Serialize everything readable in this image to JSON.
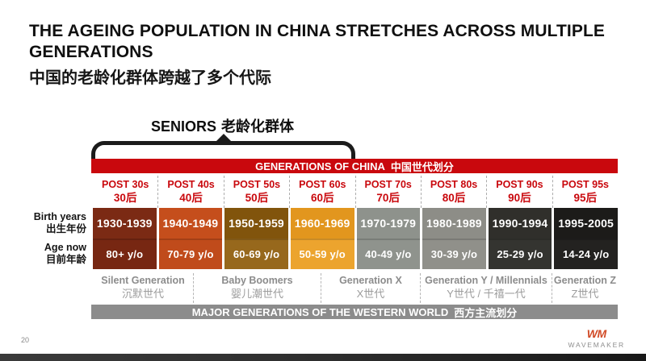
{
  "slide": {
    "title_en_line1": "THE AGEING POPULATION IN CHINA STRETCHES ACROSS MULTIPLE",
    "title_en_line2": "GENERATIONS",
    "title_cn": "中国的老龄化群体跨越了多个代际"
  },
  "seniors_callout": {
    "label_en": "SENIORS",
    "label_cn": "老龄化群体"
  },
  "china_table": {
    "banner": {
      "label_en": "GENERATIONS OF CHINA",
      "label_cn": "中国世代划分",
      "bg_color": "#C9080D",
      "text_color": "#FFFFFF"
    },
    "header_text_color": "#C9080D",
    "row_labels": {
      "birth_years_en": "Birth years",
      "birth_years_cn": "出生年份",
      "age_now_en": "Age now",
      "age_now_cn": "目前年龄"
    },
    "columns": [
      {
        "header_en": "POST 30s",
        "header_cn": "30后",
        "birth_years": "1930-1939",
        "age_now": "80+ y/o",
        "birth_bg": "#7B2A14",
        "age_bg": "#772712"
      },
      {
        "header_en": "POST 40s",
        "header_cn": "40后",
        "birth_years": "1940-1949",
        "age_now": "70-79 y/o",
        "birth_bg": "#C54E1C",
        "age_bg": "#C04B1B"
      },
      {
        "header_en": "POST 50s",
        "header_cn": "50后",
        "birth_years": "1950-1959",
        "age_now": "60-69 y/o",
        "birth_bg": "#81540C",
        "age_bg": "#97681C"
      },
      {
        "header_en": "POST 60s",
        "header_cn": "60后",
        "birth_years": "1960-1969",
        "age_now": "50-59 y/o",
        "birth_bg": "#E2961E",
        "age_bg": "#ECA42E"
      },
      {
        "header_en": "POST 70s",
        "header_cn": "70后",
        "birth_years": "1970-1979",
        "age_now": "40-49 y/o",
        "birth_bg": "#8E928C",
        "age_bg": "#8F938D"
      },
      {
        "header_en": "POST 80s",
        "header_cn": "80后",
        "birth_years": "1980-1989",
        "age_now": "30-39 y/o",
        "birth_bg": "#8D8D87",
        "age_bg": "#90908A"
      },
      {
        "header_en": "POST 90s",
        "header_cn": "90后",
        "birth_years": "1990-1994",
        "age_now": "25-29 y/o",
        "birth_bg": "#302F2B",
        "age_bg": "#343430"
      },
      {
        "header_en": "POST 95s",
        "header_cn": "95后",
        "birth_years": "1995-2005",
        "age_now": "14-24 y/o",
        "birth_bg": "#1C1B19",
        "age_bg": "#232220"
      }
    ]
  },
  "western_generations": {
    "sections": [
      {
        "label_en": "Silent Generation",
        "label_cn": "沉默世代",
        "width_pct": 19.23
      },
      {
        "label_en": "Baby Boomers",
        "label_cn": "婴儿潮世代",
        "width_pct": 24.31
      },
      {
        "label_en": "Generation X",
        "label_cn": "X世代",
        "width_pct": 18.92
      },
      {
        "label_en": "Generation Y /  Millennials",
        "label_cn": "Y世代 / 千禧一代",
        "width_pct": 25.08
      },
      {
        "label_en": "Generation Z",
        "label_cn": "Z世代",
        "width_pct": 12.46
      }
    ],
    "banner": {
      "label_en": "MAJOR GENERATIONS OF THE WESTERN WORLD",
      "label_cn": "西方主流划分",
      "bg_color": "#8C8C8C",
      "text_color": "#FFFFFF"
    }
  },
  "footer": {
    "page_number": "20",
    "logo_mark": "WM",
    "logo_name": "WAVEMAKER",
    "logo_color": "#D14B27"
  },
  "chart_data": {
    "type": "table",
    "title": "GENERATIONS OF CHINA 中国世代划分",
    "columns": [
      "POST 30s 30后",
      "POST 40s 40后",
      "POST 50s 50后",
      "POST 60s 60后",
      "POST 70s 70后",
      "POST 80s 80后",
      "POST 90s 90后",
      "POST 95s 95后"
    ],
    "rows": [
      {
        "label": "Birth years 出生年份",
        "values": [
          "1930-1939",
          "1940-1949",
          "1950-1959",
          "1960-1969",
          "1970-1979",
          "1980-1989",
          "1990-1994",
          "1995-2005"
        ]
      },
      {
        "label": "Age now 目前年龄",
        "values": [
          "80+ y/o",
          "70-79 y/o",
          "60-69 y/o",
          "50-59 y/o",
          "40-49 y/o",
          "30-39 y/o",
          "25-29 y/o",
          "14-24 y/o"
        ]
      }
    ],
    "annotations": {
      "seniors_bracket": "SENIORS 老龄化群体 spans POST 30s to POST 60s",
      "western_footer": "MAJOR GENERATIONS OF THE WESTERN WORLD 西方主流划分",
      "western_sections": [
        "Silent Generation 沉默世代",
        "Baby Boomers 婴儿潮世代",
        "Generation X X世代",
        "Generation Y / Millennials Y世代 / 千禧一代",
        "Generation Z Z世代"
      ]
    }
  }
}
